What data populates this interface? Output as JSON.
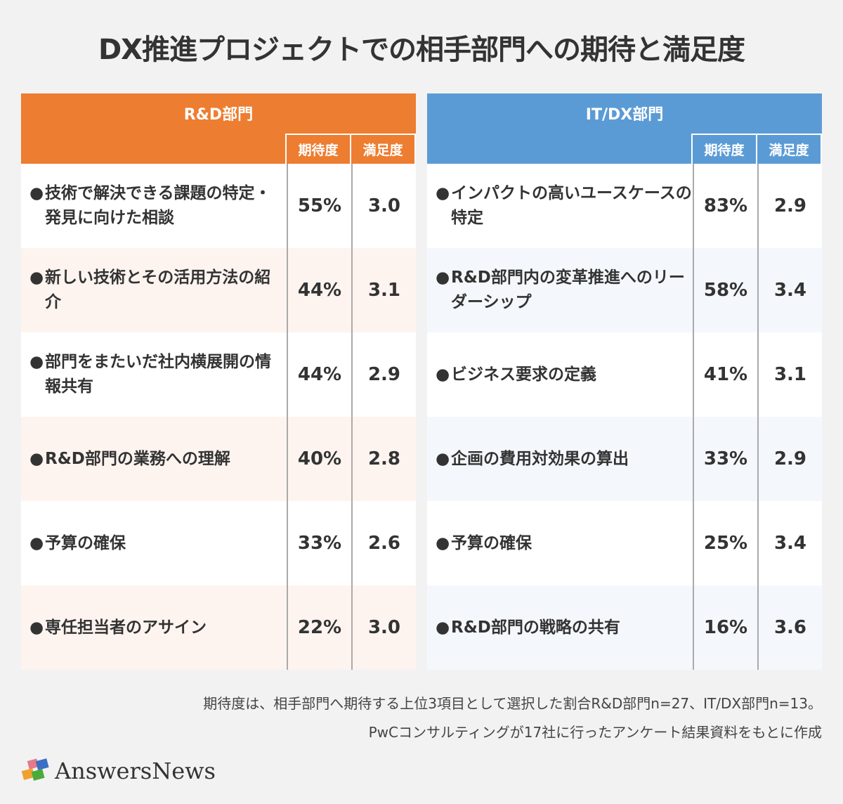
{
  "title": "DX推進プロジェクトでの相手部門への期待と満足度",
  "colors": {
    "rd": "#ed7d31",
    "it": "#5b9bd5",
    "rd_alt": "#fdf4f0",
    "it_alt": "#f4f8fc"
  },
  "col_expect": "期待度",
  "col_satisfy": "満足度",
  "tables": [
    {
      "name": "R&D部門",
      "rows": [
        {
          "item": "技術で解決できる課題の特定・発見に向けた相談",
          "expect": "55%",
          "satisfy": "3.0"
        },
        {
          "item": "新しい技術とその活用方法の紹介",
          "expect": "44%",
          "satisfy": "3.1"
        },
        {
          "item": "部門をまたいだ社内横展開の情報共有",
          "expect": "44%",
          "satisfy": "2.9"
        },
        {
          "item": "R&D部門の業務への理解",
          "expect": "40%",
          "satisfy": "2.8"
        },
        {
          "item": "予算の確保",
          "expect": "33%",
          "satisfy": "2.6"
        },
        {
          "item": "専任担当者のアサイン",
          "expect": "22%",
          "satisfy": "3.0"
        }
      ]
    },
    {
      "name": "IT/DX部門",
      "rows": [
        {
          "item": "インパクトの高いユースケースの特定",
          "expect": "83%",
          "satisfy": "2.9"
        },
        {
          "item": "R&D部門内の変革推進へのリーダーシップ",
          "expect": "58%",
          "satisfy": "3.4"
        },
        {
          "item": "ビジネス要求の定義",
          "expect": "41%",
          "satisfy": "3.1"
        },
        {
          "item": "企画の費用対効果の算出",
          "expect": "33%",
          "satisfy": "2.9"
        },
        {
          "item": "予算の確保",
          "expect": "25%",
          "satisfy": "3.4"
        },
        {
          "item": "R&D部門の戦略の共有",
          "expect": "16%",
          "satisfy": "3.6"
        }
      ]
    }
  ],
  "notes": [
    "期待度は、相手部門へ期待する上位3項目として選択した割合R&D部門n=27、IT/DX部門n=13。",
    "PwCコンサルティングが17社に行ったアンケート結果資料をもとに作成"
  ],
  "logo": "AnswersNews"
}
